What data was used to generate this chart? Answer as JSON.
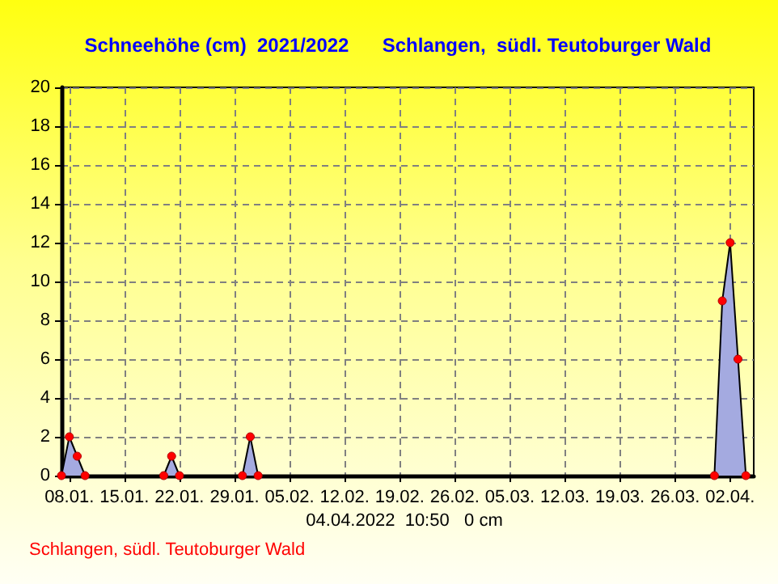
{
  "chart_data": {
    "type": "area",
    "title": "Schneehöhe (cm)  2021/2022",
    "subtitle": "Schlangen,  südl. Teutoburger Wald",
    "x": [
      "2022-01-07",
      "2022-01-08",
      "2022-01-09",
      "2022-01-10",
      "2022-01-20",
      "2022-01-21",
      "2022-01-22",
      "2022-01-30",
      "2022-01-31",
      "2022-02-01",
      "2022-03-31",
      "2022-04-01",
      "2022-04-02",
      "2022-04-03",
      "2022-04-04"
    ],
    "values": [
      0,
      2,
      1,
      0,
      0,
      1,
      0,
      0,
      2,
      0,
      0,
      9,
      12,
      6,
      0
    ],
    "color": "#a4aae0",
    "xlim": [
      "2022-01-07",
      "2022-04-05"
    ],
    "xticks": [
      {
        "value": "2022-01-08",
        "label": "08.01."
      },
      {
        "value": "2022-01-15",
        "label": "15.01."
      },
      {
        "value": "2022-01-22",
        "label": "22.01."
      },
      {
        "value": "2022-01-29",
        "label": "29.01."
      },
      {
        "value": "2022-02-05",
        "label": "05.02."
      },
      {
        "value": "2022-02-12",
        "label": "12.02."
      },
      {
        "value": "2022-02-19",
        "label": "19.02."
      },
      {
        "value": "2022-02-26",
        "label": "26.02."
      },
      {
        "value": "2022-03-05",
        "label": "05.03."
      },
      {
        "value": "2022-03-12",
        "label": "12.03."
      },
      {
        "value": "2022-03-19",
        "label": "19.03."
      },
      {
        "value": "2022-03-26",
        "label": "26.03."
      },
      {
        "value": "2022-04-02",
        "label": "02.04."
      }
    ],
    "ylim": [
      0,
      20
    ],
    "yticks": [
      0,
      2,
      4,
      6,
      8,
      10,
      12,
      14,
      16,
      18,
      20
    ],
    "grid": true,
    "marker": "circle",
    "annotations": [
      "04.04.2022  10:50   0 cm",
      "Schlangen, südl. Teutoburger Wald"
    ]
  }
}
